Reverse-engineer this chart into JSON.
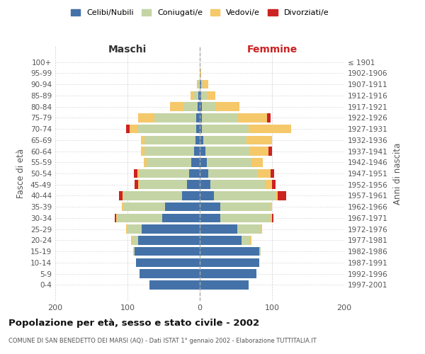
{
  "age_groups": [
    "100+",
    "95-99",
    "90-94",
    "85-89",
    "80-84",
    "75-79",
    "70-74",
    "65-69",
    "60-64",
    "55-59",
    "50-54",
    "45-49",
    "40-44",
    "35-39",
    "30-34",
    "25-29",
    "20-24",
    "15-19",
    "10-14",
    "5-9",
    "0-4"
  ],
  "birth_years": [
    "≤ 1901",
    "1902-1906",
    "1907-1911",
    "1912-1916",
    "1917-1921",
    "1922-1926",
    "1927-1931",
    "1932-1936",
    "1937-1941",
    "1942-1946",
    "1947-1951",
    "1952-1956",
    "1957-1961",
    "1962-1966",
    "1967-1971",
    "1972-1976",
    "1977-1981",
    "1982-1986",
    "1987-1991",
    "1992-1996",
    "1997-2001"
  ],
  "colors": {
    "celibi": "#4472a8",
    "coniugati": "#c5d4a5",
    "vedovi": "#f5c86a",
    "divorziati": "#cc2222"
  },
  "maschi": {
    "celibi": [
      0,
      0,
      0,
      2,
      3,
      5,
      5,
      6,
      8,
      12,
      15,
      18,
      25,
      48,
      52,
      80,
      85,
      90,
      88,
      83,
      70
    ],
    "coniugati": [
      0,
      0,
      2,
      6,
      20,
      58,
      80,
      70,
      68,
      62,
      68,
      65,
      80,
      58,
      62,
      20,
      8,
      2,
      0,
      0,
      0
    ],
    "vedovi": [
      0,
      0,
      2,
      5,
      18,
      22,
      12,
      5,
      5,
      3,
      3,
      2,
      2,
      2,
      2,
      2,
      2,
      0,
      0,
      0,
      0
    ],
    "divorziati": [
      0,
      0,
      0,
      0,
      0,
      0,
      5,
      0,
      0,
      0,
      5,
      5,
      5,
      0,
      2,
      0,
      0,
      0,
      0,
      0,
      0
    ]
  },
  "femmine": {
    "celibi": [
      0,
      0,
      2,
      2,
      3,
      3,
      3,
      5,
      8,
      10,
      12,
      15,
      20,
      28,
      28,
      52,
      58,
      82,
      82,
      78,
      68
    ],
    "coniugati": [
      0,
      0,
      2,
      8,
      20,
      50,
      65,
      60,
      62,
      62,
      68,
      75,
      85,
      70,
      70,
      32,
      12,
      2,
      0,
      0,
      0
    ],
    "vedovi": [
      0,
      2,
      8,
      12,
      32,
      40,
      58,
      35,
      25,
      15,
      18,
      10,
      3,
      2,
      2,
      2,
      2,
      0,
      0,
      0,
      0
    ],
    "divorziati": [
      0,
      0,
      0,
      0,
      0,
      5,
      0,
      0,
      5,
      0,
      5,
      5,
      12,
      0,
      2,
      0,
      0,
      0,
      0,
      0,
      0
    ]
  },
  "title": "Popolazione per età, sesso e stato civile - 2002",
  "subtitle": "COMUNE DI SAN BENEDETTO DEI MARSI (AQ) - Dati ISTAT 1° gennaio 2002 - Elaborazione TUTTITALIA.IT",
  "label_maschi": "Maschi",
  "label_femmine": "Femmine",
  "ylabel_left": "Fasce di età",
  "ylabel_right": "Anni di nascita",
  "legend_labels": [
    "Celibi/Nubili",
    "Coniugati/e",
    "Vedovi/e",
    "Divorziati/e"
  ],
  "xlim": 200,
  "background_color": "#ffffff",
  "grid_color": "#d0d0d0"
}
